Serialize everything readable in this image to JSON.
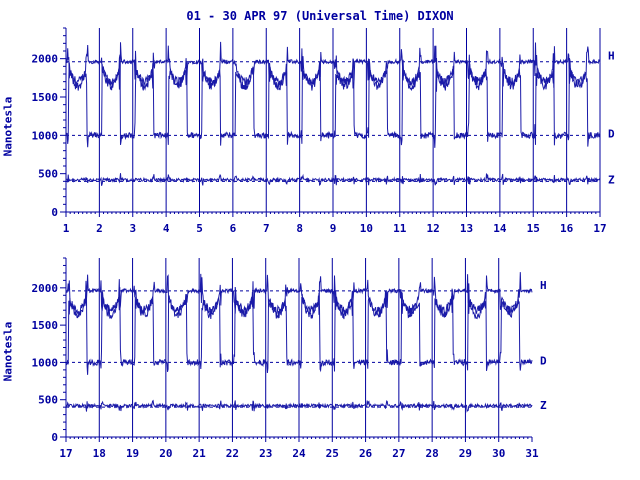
{
  "title": "01 - 30 APR 97 (Universal Time) DIXON",
  "ylabel": "Nanotesla",
  "colors": {
    "ink": "#0000a0",
    "trace": "#1a1aa8"
  },
  "chart_data": [
    {
      "type": "line",
      "ylabel": "Nanotesla",
      "ylim": [
        0,
        2400
      ],
      "yticks": [
        0,
        500,
        1000,
        1500,
        2000
      ],
      "xticks": [
        1,
        2,
        3,
        4,
        5,
        6,
        7,
        8,
        9,
        10,
        11,
        12,
        13,
        14,
        15,
        16,
        17
      ],
      "xlim": [
        1,
        17
      ],
      "series": [
        {
          "name": "H",
          "baseline": 1960,
          "night_level": 1900,
          "night_drop": 0
        },
        {
          "name": "D",
          "baseline": 1000,
          "day_level": 1850
        },
        {
          "name": "Z",
          "baseline": 400,
          "level": 420
        }
      ]
    },
    {
      "type": "line",
      "ylabel": "Nanotesla",
      "ylim": [
        0,
        2400
      ],
      "yticks": [
        0,
        500,
        1000,
        1500,
        2000
      ],
      "xticks": [
        17,
        18,
        19,
        20,
        21,
        22,
        23,
        24,
        25,
        26,
        27,
        28,
        29,
        30,
        31
      ],
      "xlim": [
        17,
        31
      ],
      "series": [
        {
          "name": "H",
          "baseline": 1960,
          "night_level": 1900
        },
        {
          "name": "D",
          "baseline": 1000,
          "day_level": 1850
        },
        {
          "name": "Z",
          "baseline": 400,
          "level": 420
        }
      ]
    }
  ]
}
